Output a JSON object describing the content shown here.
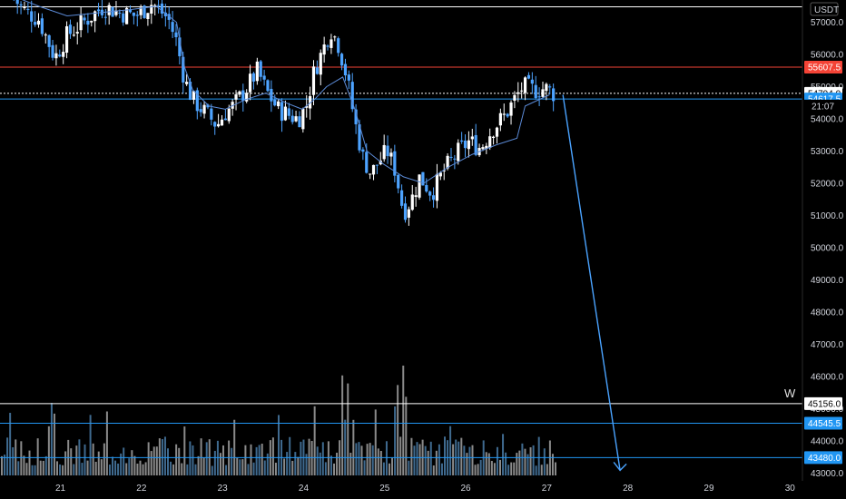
{
  "chart_data": {
    "type": "candlestick",
    "currency": "USDT",
    "ylim": [
      42900,
      57900
    ],
    "xlim": [
      20.4,
      30.2
    ],
    "y_ticks": [
      43000,
      44000,
      45000,
      46000,
      47000,
      48000,
      49000,
      50000,
      51000,
      52000,
      53000,
      54000,
      55000,
      56000,
      57000
    ],
    "y_tick_labels": [
      "43000.0",
      "44000.0",
      "45000.0",
      "46000.0",
      "47000.0",
      "48000.0",
      "49000.0",
      "50000.0",
      "51000.0",
      "52000.0",
      "53000.0",
      "54000.0",
      "55000.0",
      "56000.0",
      "57000.0"
    ],
    "x_ticks": [
      21,
      22,
      23,
      24,
      25,
      26,
      27,
      28,
      29,
      30
    ],
    "x_tick_labels": [
      "21",
      "22",
      "23",
      "24",
      "25",
      "26",
      "27",
      "28",
      "29",
      "30"
    ],
    "price_path": [
      [
        20.4,
        57900
      ],
      [
        20.55,
        57400
      ],
      [
        20.75,
        57100
      ],
      [
        20.95,
        55900
      ],
      [
        21.1,
        56600
      ],
      [
        21.3,
        57000
      ],
      [
        21.55,
        57500
      ],
      [
        21.75,
        57300
      ],
      [
        21.95,
        57200
      ],
      [
        22.15,
        57600
      ],
      [
        22.35,
        57100
      ],
      [
        22.45,
        56400
      ],
      [
        22.55,
        55200
      ],
      [
        22.65,
        54600
      ],
      [
        22.8,
        54200
      ],
      [
        22.95,
        53800
      ],
      [
        23.05,
        54200
      ],
      [
        23.15,
        54400
      ],
      [
        23.3,
        54900
      ],
      [
        23.45,
        55500
      ],
      [
        23.55,
        54900
      ],
      [
        23.7,
        54300
      ],
      [
        23.85,
        54100
      ],
      [
        23.95,
        54000
      ],
      [
        24.05,
        54400
      ],
      [
        24.15,
        55500
      ],
      [
        24.25,
        56100
      ],
      [
        24.35,
        56800
      ],
      [
        24.45,
        56300
      ],
      [
        24.55,
        55300
      ],
      [
        24.65,
        53900
      ],
      [
        24.75,
        52800
      ],
      [
        24.85,
        52300
      ],
      [
        24.95,
        52700
      ],
      [
        25.05,
        53000
      ],
      [
        25.15,
        52400
      ],
      [
        25.25,
        51100
      ],
      [
        25.35,
        51500
      ],
      [
        25.45,
        52200
      ],
      [
        25.6,
        51700
      ],
      [
        25.75,
        52400
      ],
      [
        25.9,
        52900
      ],
      [
        26.05,
        53300
      ],
      [
        26.2,
        53100
      ],
      [
        26.35,
        53700
      ],
      [
        26.5,
        54100
      ],
      [
        26.62,
        54600
      ],
      [
        26.72,
        55000
      ],
      [
        26.85,
        54900
      ],
      [
        27.0,
        54950
      ],
      [
        27.1,
        54800
      ]
    ],
    "ma_path": [
      [
        20.45,
        57800
      ],
      [
        20.75,
        57500
      ],
      [
        21.1,
        57200
      ],
      [
        21.5,
        57300
      ],
      [
        21.9,
        57400
      ],
      [
        22.2,
        57500
      ],
      [
        22.45,
        57000
      ],
      [
        22.55,
        55600
      ],
      [
        22.65,
        54900
      ],
      [
        22.85,
        54400
      ],
      [
        23.05,
        54300
      ],
      [
        23.3,
        54600
      ],
      [
        23.55,
        54800
      ],
      [
        23.8,
        54500
      ],
      [
        24.0,
        54300
      ],
      [
        24.15,
        54600
      ],
      [
        24.3,
        55000
      ],
      [
        24.5,
        55300
      ],
      [
        24.65,
        54300
      ],
      [
        24.8,
        53000
      ],
      [
        25.0,
        52600
      ],
      [
        25.25,
        52200
      ],
      [
        25.5,
        52000
      ],
      [
        25.8,
        52500
      ],
      [
        26.1,
        52900
      ],
      [
        26.4,
        53200
      ],
      [
        26.65,
        53400
      ],
      [
        26.75,
        54400
      ],
      [
        27.05,
        54750
      ]
    ],
    "projection_arrow": {
      "from": [
        27.25,
        54750
      ],
      "to": [
        28.0,
        43000
      ]
    },
    "volume_scale_max": 100,
    "horizontal_levels": [
      {
        "name": "top-white",
        "price": 57900,
        "color": "#ffffff",
        "tag": ""
      },
      {
        "name": "red-resistance",
        "price": 55607.5,
        "color": "#f44336",
        "tag": "55607.5"
      },
      {
        "name": "last-price",
        "price": 54794.0,
        "color": "#ffffff",
        "dotted": true,
        "tag": "54794.0"
      },
      {
        "name": "blue-support",
        "price": 54617.5,
        "color": "#2196f3",
        "tag": "54617.5"
      },
      {
        "name": "white-45156",
        "price": 45156.0,
        "color": "#ffffff",
        "tag": "45156.0"
      },
      {
        "name": "blue-44545",
        "price": 44545.5,
        "color": "#2196f3",
        "tag": "44545.5"
      },
      {
        "name": "blue-43480",
        "price": 43480.0,
        "color": "#2196f3",
        "tag": "43480.0"
      }
    ],
    "countdown": "21:07",
    "level_marker": "W"
  },
  "colors": {
    "background": "#000000",
    "up_candle": "#ffffff",
    "down_candle": "#4da3ff",
    "ma_line": "#5b8ad6",
    "arrow": "#4aa3ff",
    "volume_up": "#8a8a8a",
    "volume_down": "#3f6a8f"
  }
}
